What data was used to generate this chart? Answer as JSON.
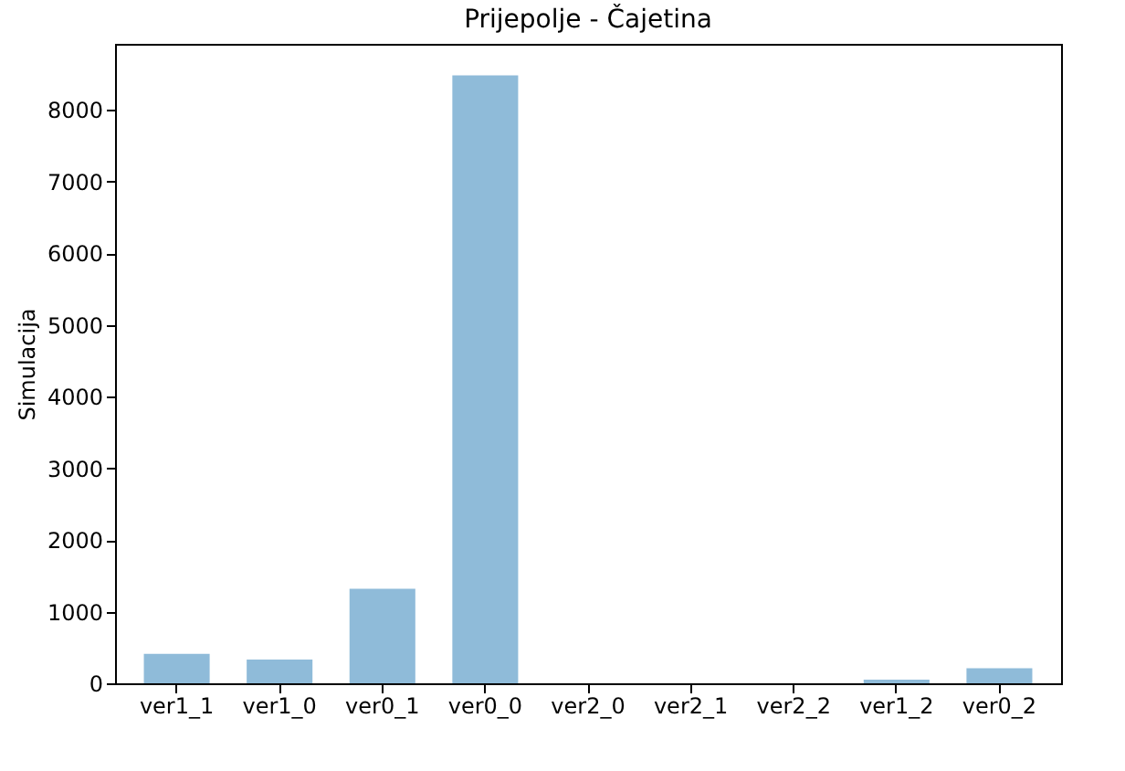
{
  "chart_data": {
    "type": "bar",
    "title": "Prijepolje - Čajetina",
    "ylabel": "Simulacija",
    "categories": [
      "ver1_1",
      "ver1_0",
      "ver0_1",
      "ver0_0",
      "ver2_0",
      "ver2_1",
      "ver2_2",
      "ver1_2",
      "ver0_2"
    ],
    "values": [
      410,
      330,
      1320,
      8480,
      0,
      0,
      0,
      50,
      210
    ],
    "color": "#8fbbd9",
    "ylim": [
      0,
      8920
    ],
    "yticks": [
      0,
      1000,
      2000,
      3000,
      4000,
      5000,
      6000,
      7000,
      8000
    ],
    "grid": false
  }
}
